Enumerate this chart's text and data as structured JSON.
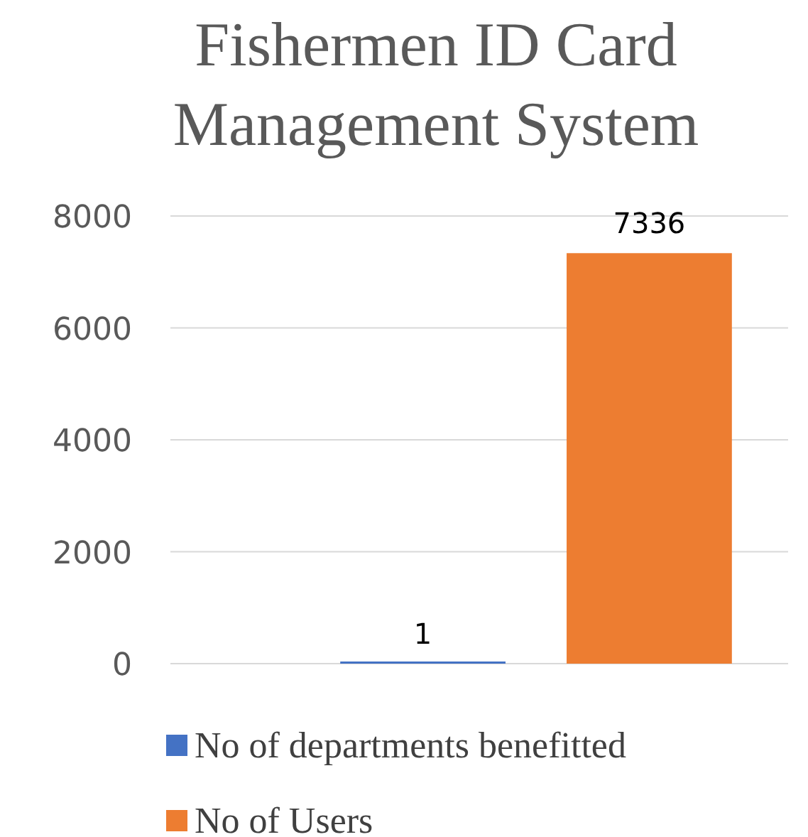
{
  "chart_data": {
    "type": "bar",
    "title": "Fishermen ID Card Management System",
    "categories": [
      null
    ],
    "series": [
      {
        "name": "No of departments benefitted",
        "color": "#4472c4",
        "values": [
          1
        ]
      },
      {
        "name": "No of Users",
        "color": "#ed7d31",
        "values": [
          7336
        ]
      }
    ],
    "ylim": [
      0,
      8000
    ],
    "yticks": [
      0,
      2000,
      4000,
      6000,
      8000
    ],
    "grid": "y",
    "legend": "bottom",
    "data_labels": true
  }
}
